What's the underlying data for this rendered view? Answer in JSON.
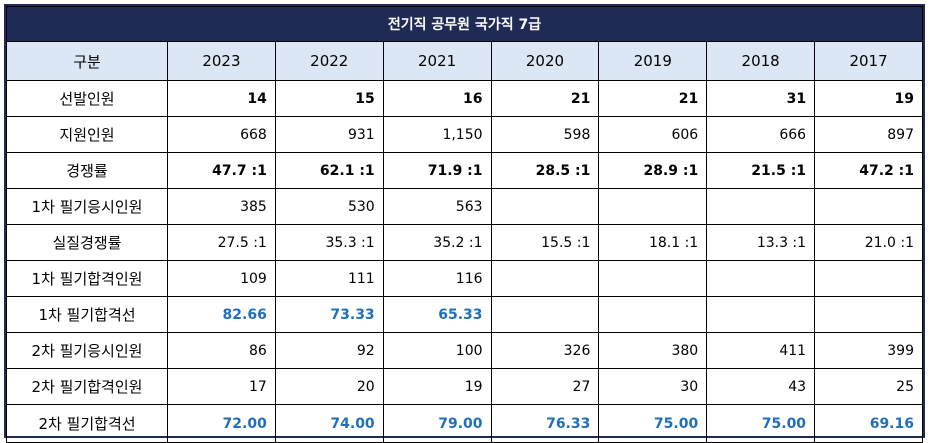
{
  "title": "전기직 공무원 국가직 7급",
  "colors": {
    "header_bg": "#1f2b55",
    "subheader_bg": "#dbe7f4",
    "highlight_text": "#1f6fbd"
  },
  "header": {
    "label": "구분",
    "years": [
      "2023",
      "2022",
      "2021",
      "2020",
      "2019",
      "2018",
      "2017"
    ]
  },
  "rows": [
    {
      "label": "선발인원",
      "style": "bold",
      "values": [
        "14",
        "15",
        "16",
        "21",
        "21",
        "31",
        "19"
      ]
    },
    {
      "label": "지원인원",
      "style": "normal",
      "values": [
        "668",
        "931",
        "1,150",
        "598",
        "606",
        "666",
        "897"
      ]
    },
    {
      "label": "경쟁률",
      "style": "bold",
      "values": [
        "47.7 :1",
        "62.1 :1",
        "71.9 :1",
        "28.5 :1",
        "28.9 :1",
        "21.5 :1",
        "47.2 :1"
      ]
    },
    {
      "label": "1차 필기응시인원",
      "style": "normal",
      "values": [
        "385",
        "530",
        "563",
        "",
        "",
        "",
        ""
      ]
    },
    {
      "label": "실질경쟁률",
      "style": "normal",
      "values": [
        "27.5 :1",
        "35.3 :1",
        "35.2 :1",
        "15.5 :1",
        "18.1 :1",
        "13.3 :1",
        "21.0 :1"
      ]
    },
    {
      "label": "1차 필기합격인원",
      "style": "normal",
      "values": [
        "109",
        "111",
        "116",
        "",
        "",
        "",
        ""
      ]
    },
    {
      "label": "1차 필기합격선",
      "style": "blue",
      "values": [
        "82.66",
        "73.33",
        "65.33",
        "",
        "",
        "",
        ""
      ]
    },
    {
      "label": "2차 필기응시인원",
      "style": "normal",
      "values": [
        "86",
        "92",
        "100",
        "326",
        "380",
        "411",
        "399"
      ]
    },
    {
      "label": "2차 필기합격인원",
      "style": "normal",
      "values": [
        "17",
        "20",
        "19",
        "27",
        "30",
        "43",
        "25"
      ]
    },
    {
      "label": "2차 필기합격선",
      "style": "blue",
      "values": [
        "72.00",
        "74.00",
        "79.00",
        "76.33",
        "75.00",
        "75.00",
        "69.16"
      ]
    }
  ]
}
